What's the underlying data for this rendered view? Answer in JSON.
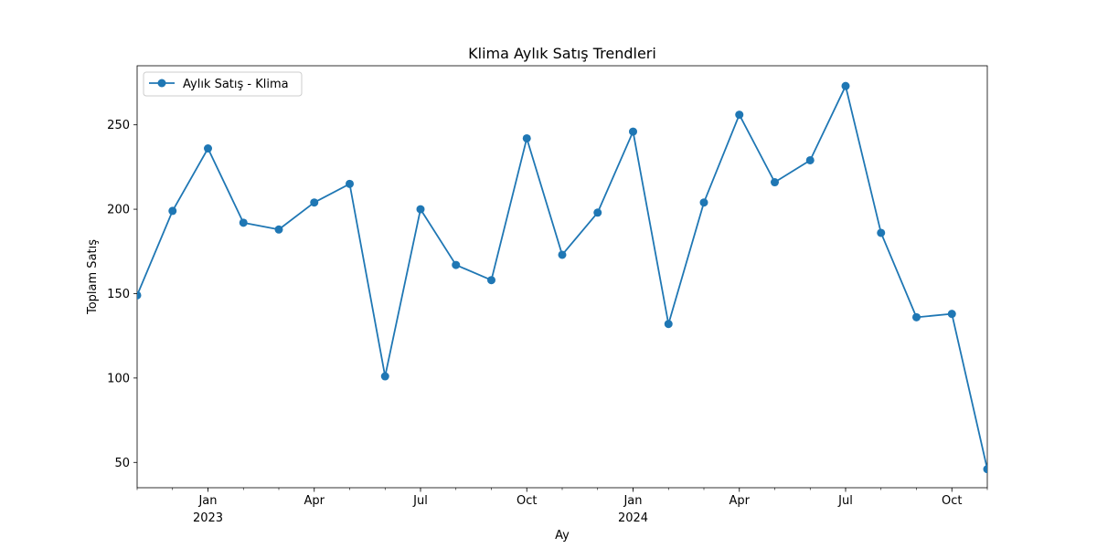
{
  "chart_data": {
    "type": "line",
    "title": "Klima Aylık Satış Trendleri",
    "xlabel": "Ay",
    "ylabel": "Toplam Satış",
    "x": [
      "2022-11",
      "2022-12",
      "2023-01",
      "2023-02",
      "2023-03",
      "2023-04",
      "2023-05",
      "2023-06",
      "2023-07",
      "2023-08",
      "2023-09",
      "2023-10",
      "2023-11",
      "2023-12",
      "2024-01",
      "2024-02",
      "2024-03",
      "2024-04",
      "2024-05",
      "2024-06",
      "2024-07",
      "2024-08",
      "2024-09",
      "2024-10",
      "2024-11"
    ],
    "series": [
      {
        "name": "Aylık Satış - Klima",
        "color": "#1f77b4",
        "marker": "circle",
        "values": [
          149,
          199,
          236,
          192,
          188,
          204,
          215,
          101,
          200,
          167,
          158,
          242,
          173,
          198,
          246,
          132,
          204,
          256,
          216,
          229,
          273,
          186,
          136,
          138,
          46
        ]
      }
    ],
    "ylim": [
      35,
      285
    ],
    "y_ticks": [
      50,
      100,
      150,
      200,
      250
    ],
    "x_ticks": [
      {
        "index": 2,
        "label": "Jan",
        "sublabel": "2023"
      },
      {
        "index": 5,
        "label": "Apr",
        "sublabel": ""
      },
      {
        "index": 8,
        "label": "Jul",
        "sublabel": ""
      },
      {
        "index": 11,
        "label": "Oct",
        "sublabel": ""
      },
      {
        "index": 14,
        "label": "Jan",
        "sublabel": "2024"
      },
      {
        "index": 17,
        "label": "Apr",
        "sublabel": ""
      },
      {
        "index": 20,
        "label": "Jul",
        "sublabel": ""
      },
      {
        "index": 23,
        "label": "Oct",
        "sublabel": ""
      }
    ],
    "grid": false,
    "legend_position": "top-left"
  }
}
